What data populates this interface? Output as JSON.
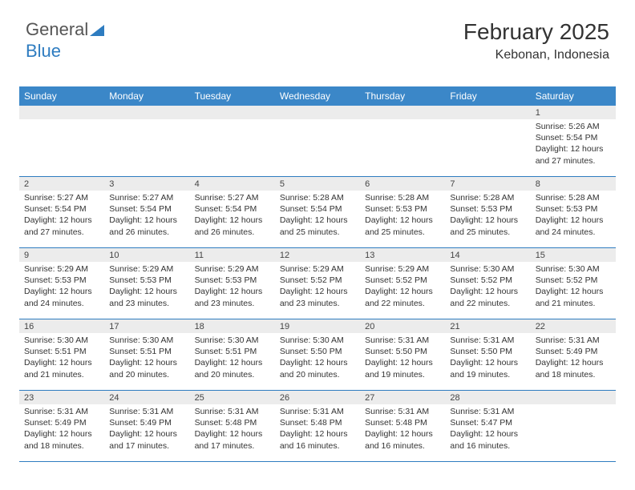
{
  "brand": {
    "name1": "General",
    "name2": "Blue"
  },
  "header": {
    "month": "February 2025",
    "location": "Kebonan, Indonesia"
  },
  "colors": {
    "header_bg": "#3b87c8",
    "rule": "#2e7cc0",
    "daynum_bg": "#ececec",
    "text": "#333333",
    "background": "#ffffff"
  },
  "typography": {
    "month_fontsize": 28,
    "location_fontsize": 16,
    "dayheader_fontsize": 12,
    "cell_fontsize": 10.5
  },
  "day_headers": [
    "Sunday",
    "Monday",
    "Tuesday",
    "Wednesday",
    "Thursday",
    "Friday",
    "Saturday"
  ],
  "weeks": [
    [
      {
        "n": "",
        "sunrise": "",
        "sunset": "",
        "daylight": ""
      },
      {
        "n": "",
        "sunrise": "",
        "sunset": "",
        "daylight": ""
      },
      {
        "n": "",
        "sunrise": "",
        "sunset": "",
        "daylight": ""
      },
      {
        "n": "",
        "sunrise": "",
        "sunset": "",
        "daylight": ""
      },
      {
        "n": "",
        "sunrise": "",
        "sunset": "",
        "daylight": ""
      },
      {
        "n": "",
        "sunrise": "",
        "sunset": "",
        "daylight": ""
      },
      {
        "n": "1",
        "sunrise": "Sunrise: 5:26 AM",
        "sunset": "Sunset: 5:54 PM",
        "daylight": "Daylight: 12 hours and 27 minutes."
      }
    ],
    [
      {
        "n": "2",
        "sunrise": "Sunrise: 5:27 AM",
        "sunset": "Sunset: 5:54 PM",
        "daylight": "Daylight: 12 hours and 27 minutes."
      },
      {
        "n": "3",
        "sunrise": "Sunrise: 5:27 AM",
        "sunset": "Sunset: 5:54 PM",
        "daylight": "Daylight: 12 hours and 26 minutes."
      },
      {
        "n": "4",
        "sunrise": "Sunrise: 5:27 AM",
        "sunset": "Sunset: 5:54 PM",
        "daylight": "Daylight: 12 hours and 26 minutes."
      },
      {
        "n": "5",
        "sunrise": "Sunrise: 5:28 AM",
        "sunset": "Sunset: 5:54 PM",
        "daylight": "Daylight: 12 hours and 25 minutes."
      },
      {
        "n": "6",
        "sunrise": "Sunrise: 5:28 AM",
        "sunset": "Sunset: 5:53 PM",
        "daylight": "Daylight: 12 hours and 25 minutes."
      },
      {
        "n": "7",
        "sunrise": "Sunrise: 5:28 AM",
        "sunset": "Sunset: 5:53 PM",
        "daylight": "Daylight: 12 hours and 25 minutes."
      },
      {
        "n": "8",
        "sunrise": "Sunrise: 5:28 AM",
        "sunset": "Sunset: 5:53 PM",
        "daylight": "Daylight: 12 hours and 24 minutes."
      }
    ],
    [
      {
        "n": "9",
        "sunrise": "Sunrise: 5:29 AM",
        "sunset": "Sunset: 5:53 PM",
        "daylight": "Daylight: 12 hours and 24 minutes."
      },
      {
        "n": "10",
        "sunrise": "Sunrise: 5:29 AM",
        "sunset": "Sunset: 5:53 PM",
        "daylight": "Daylight: 12 hours and 23 minutes."
      },
      {
        "n": "11",
        "sunrise": "Sunrise: 5:29 AM",
        "sunset": "Sunset: 5:53 PM",
        "daylight": "Daylight: 12 hours and 23 minutes."
      },
      {
        "n": "12",
        "sunrise": "Sunrise: 5:29 AM",
        "sunset": "Sunset: 5:52 PM",
        "daylight": "Daylight: 12 hours and 23 minutes."
      },
      {
        "n": "13",
        "sunrise": "Sunrise: 5:29 AM",
        "sunset": "Sunset: 5:52 PM",
        "daylight": "Daylight: 12 hours and 22 minutes."
      },
      {
        "n": "14",
        "sunrise": "Sunrise: 5:30 AM",
        "sunset": "Sunset: 5:52 PM",
        "daylight": "Daylight: 12 hours and 22 minutes."
      },
      {
        "n": "15",
        "sunrise": "Sunrise: 5:30 AM",
        "sunset": "Sunset: 5:52 PM",
        "daylight": "Daylight: 12 hours and 21 minutes."
      }
    ],
    [
      {
        "n": "16",
        "sunrise": "Sunrise: 5:30 AM",
        "sunset": "Sunset: 5:51 PM",
        "daylight": "Daylight: 12 hours and 21 minutes."
      },
      {
        "n": "17",
        "sunrise": "Sunrise: 5:30 AM",
        "sunset": "Sunset: 5:51 PM",
        "daylight": "Daylight: 12 hours and 20 minutes."
      },
      {
        "n": "18",
        "sunrise": "Sunrise: 5:30 AM",
        "sunset": "Sunset: 5:51 PM",
        "daylight": "Daylight: 12 hours and 20 minutes."
      },
      {
        "n": "19",
        "sunrise": "Sunrise: 5:30 AM",
        "sunset": "Sunset: 5:50 PM",
        "daylight": "Daylight: 12 hours and 20 minutes."
      },
      {
        "n": "20",
        "sunrise": "Sunrise: 5:31 AM",
        "sunset": "Sunset: 5:50 PM",
        "daylight": "Daylight: 12 hours and 19 minutes."
      },
      {
        "n": "21",
        "sunrise": "Sunrise: 5:31 AM",
        "sunset": "Sunset: 5:50 PM",
        "daylight": "Daylight: 12 hours and 19 minutes."
      },
      {
        "n": "22",
        "sunrise": "Sunrise: 5:31 AM",
        "sunset": "Sunset: 5:49 PM",
        "daylight": "Daylight: 12 hours and 18 minutes."
      }
    ],
    [
      {
        "n": "23",
        "sunrise": "Sunrise: 5:31 AM",
        "sunset": "Sunset: 5:49 PM",
        "daylight": "Daylight: 12 hours and 18 minutes."
      },
      {
        "n": "24",
        "sunrise": "Sunrise: 5:31 AM",
        "sunset": "Sunset: 5:49 PM",
        "daylight": "Daylight: 12 hours and 17 minutes."
      },
      {
        "n": "25",
        "sunrise": "Sunrise: 5:31 AM",
        "sunset": "Sunset: 5:48 PM",
        "daylight": "Daylight: 12 hours and 17 minutes."
      },
      {
        "n": "26",
        "sunrise": "Sunrise: 5:31 AM",
        "sunset": "Sunset: 5:48 PM",
        "daylight": "Daylight: 12 hours and 16 minutes."
      },
      {
        "n": "27",
        "sunrise": "Sunrise: 5:31 AM",
        "sunset": "Sunset: 5:48 PM",
        "daylight": "Daylight: 12 hours and 16 minutes."
      },
      {
        "n": "28",
        "sunrise": "Sunrise: 5:31 AM",
        "sunset": "Sunset: 5:47 PM",
        "daylight": "Daylight: 12 hours and 16 minutes."
      },
      {
        "n": "",
        "sunrise": "",
        "sunset": "",
        "daylight": ""
      }
    ]
  ]
}
